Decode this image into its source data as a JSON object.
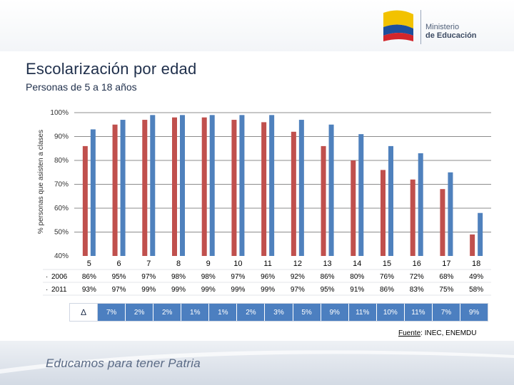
{
  "header": {
    "logo_line1": "Ministerio",
    "logo_line2": "de Educación",
    "brand_colors": {
      "yellow": "#f2c200",
      "blue": "#1d4f9c",
      "red": "#d2262c"
    }
  },
  "title": "Escolarización por edad",
  "subtitle": "Personas de 5 a 18 años",
  "chart_data": {
    "type": "bar",
    "title": "Escolarización por edad",
    "xlabel": "",
    "ylabel": "% personas que asisten a clases",
    "ylim": [
      40,
      100
    ],
    "yticks": [
      "40%",
      "50%",
      "60%",
      "70%",
      "80%",
      "90%",
      "100%"
    ],
    "ytick_values": [
      40,
      50,
      60,
      70,
      80,
      90,
      100
    ],
    "categories": [
      "5",
      "6",
      "7",
      "8",
      "9",
      "10",
      "11",
      "12",
      "13",
      "14",
      "15",
      "16",
      "17",
      "18"
    ],
    "series": [
      {
        "name": "2006",
        "color": "#c0504d",
        "values": [
          86,
          95,
          97,
          98,
          98,
          97,
          96,
          92,
          86,
          80,
          76,
          72,
          68,
          49
        ],
        "labels": [
          "86%",
          "95%",
          "97%",
          "98%",
          "98%",
          "97%",
          "96%",
          "92%",
          "86%",
          "80%",
          "76%",
          "72%",
          "68%",
          "49%"
        ]
      },
      {
        "name": "2011",
        "color": "#4f81bd",
        "values": [
          93,
          97,
          99,
          99,
          99,
          99,
          99,
          97,
          95,
          91,
          86,
          83,
          75,
          58
        ],
        "labels": [
          "93%",
          "97%",
          "99%",
          "99%",
          "99%",
          "99%",
          "99%",
          "97%",
          "95%",
          "91%",
          "86%",
          "83%",
          "75%",
          "58%"
        ]
      }
    ],
    "legend_prefix": "·",
    "grid": true
  },
  "delta": {
    "symbol": "∆",
    "values": [
      "7%",
      "2%",
      "2%",
      "1%",
      "1%",
      "2%",
      "3%",
      "5%",
      "9%",
      "11%",
      "10%",
      "11%",
      "7%",
      "9%"
    ]
  },
  "source": {
    "label": "Fuente",
    "text": ": INEC, ENEMDU"
  },
  "footer": {
    "slogan": "Educamos para tener Patria"
  }
}
